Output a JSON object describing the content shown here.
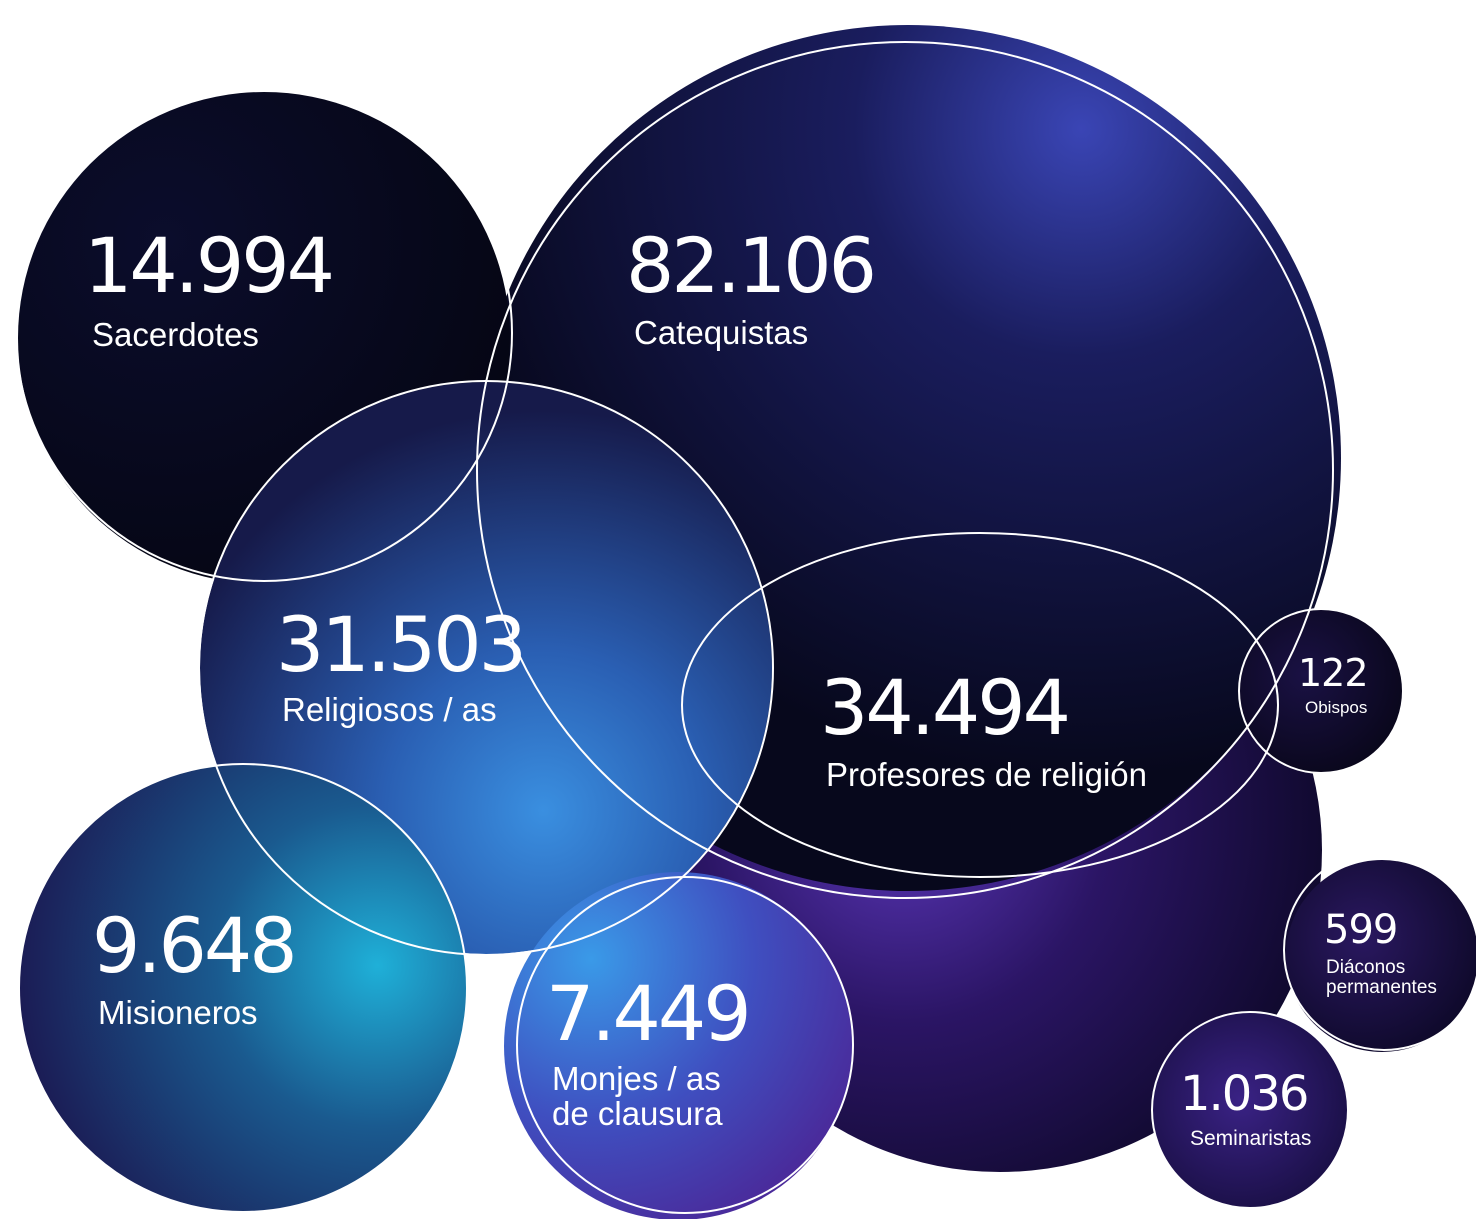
{
  "colors": {
    "navy": "#0b0c2a",
    "deep_purple": "#1c0f4a",
    "violet": "#4b2ba3",
    "indigo": "#2a2f8f",
    "cyan": "#2aa8d9",
    "teal": "#1a8fb6",
    "outline": "#ffffff"
  },
  "stats": [
    {
      "id": "sacerdotes",
      "value": "14.994",
      "label": "Sacerdotes"
    },
    {
      "id": "catequistas",
      "value": "82.106",
      "label": "Catequistas"
    },
    {
      "id": "religiosos",
      "value": "31.503",
      "label": "Religiosos / as"
    },
    {
      "id": "profesores",
      "value": "34.494",
      "label": "Profesores de religión"
    },
    {
      "id": "obispos",
      "value": "122",
      "label": "Obispos"
    },
    {
      "id": "misioneros",
      "value": "9.648",
      "label": "Misioneros"
    },
    {
      "id": "monjes",
      "value": "7.449",
      "label": "Monjes / as\nde clausura"
    },
    {
      "id": "diaconos",
      "value": "599",
      "label": "Diáconos\npermanentes"
    },
    {
      "id": "seminaristas",
      "value": "1.036",
      "label": "Seminaristas"
    }
  ]
}
